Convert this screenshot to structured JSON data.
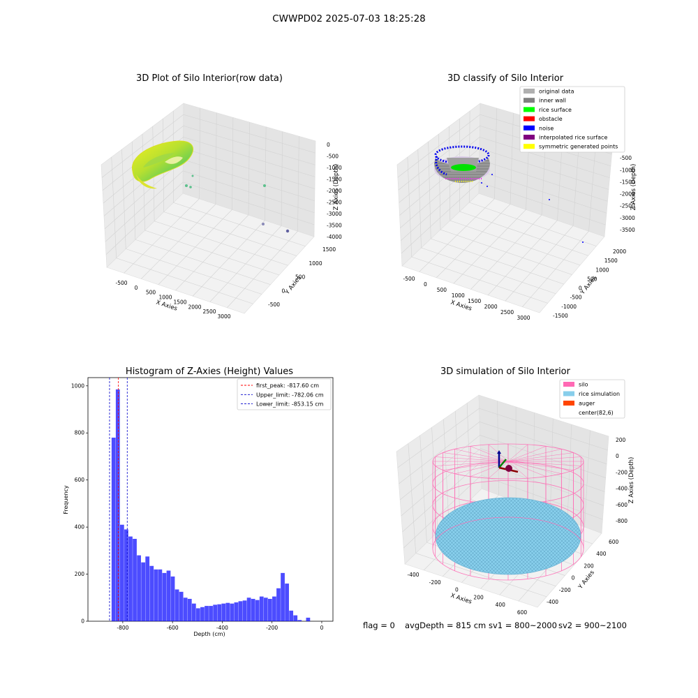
{
  "figure": {
    "suptitle": "CWWPD02 2025-07-03 18:25:28"
  },
  "panels": {
    "raw": {
      "title": "3D Plot of Silo Interior(row data)",
      "xlabel": "X Axies",
      "ylabel": "Y Axies",
      "zlabel": "Z Axies (Depth)",
      "xticks": [
        "-500",
        "0",
        "500",
        "1000",
        "1500",
        "2000",
        "2500",
        "3000"
      ],
      "yticks": [
        "-500",
        "0",
        "500",
        "1000",
        "1500"
      ],
      "zticks": [
        "0",
        "-500",
        "-1000",
        "-1500",
        "-2000",
        "-2500",
        "-3000",
        "-3500",
        "-4000"
      ]
    },
    "classify": {
      "title": "3D classify of Silo Interior",
      "xlabel": "X Axies",
      "ylabel": "Y Axies",
      "zlabel": "Z Axies (Depth)",
      "xticks": [
        "-500",
        "0",
        "500",
        "1000",
        "1500",
        "2000",
        "2500",
        "3000"
      ],
      "yticks": [
        "-1500",
        "-1000",
        "-500",
        "0",
        "500",
        "1000",
        "1500",
        "2000"
      ],
      "zticks": [
        "0",
        "-500",
        "-1000",
        "-1500",
        "-2000",
        "-2500",
        "-3000",
        "-3500"
      ],
      "legend": [
        {
          "label": "original data",
          "color": "#b0b0b0"
        },
        {
          "label": "inner wall",
          "color": "#808080"
        },
        {
          "label": "rice surface",
          "color": "#00ff00"
        },
        {
          "label": "obstacle",
          "color": "#ff0000"
        },
        {
          "label": "noise",
          "color": "#0000ff"
        },
        {
          "label": "interpolated rice surface",
          "color": "#800080"
        },
        {
          "label": "symmetric generated points",
          "color": "#ffff00"
        }
      ]
    },
    "simulation": {
      "title": "3D simulation of Silo Interior",
      "xlabel": "X Axies",
      "ylabel": "Y Axies",
      "zlabel": "Z Axies (Depth)",
      "xticks": [
        "-400",
        "-200",
        "0",
        "200",
        "400",
        "600"
      ],
      "yticks": [
        "-400",
        "-200",
        "0",
        "200",
        "400",
        "600"
      ],
      "zticks": [
        "200",
        "0",
        "-200",
        "-400",
        "-600",
        "-800"
      ],
      "legend": [
        {
          "label": "silo",
          "color": "#ff69b4"
        },
        {
          "label": "rice simulation",
          "color": "#87ceeb"
        },
        {
          "label": "auger",
          "color": "#ff4500"
        },
        {
          "label": "center(82,6)",
          "color": ""
        }
      ]
    }
  },
  "chart_data": [
    {
      "type": "scatter",
      "title": "3D Plot of Silo Interior(row data)",
      "xlabel": "X Axies",
      "ylabel": "Y Axies",
      "zlabel": "Z Axies (Depth)",
      "xlim": [
        -750,
        3250
      ],
      "ylim": [
        -900,
        1700
      ],
      "zlim": [
        -4100,
        200
      ],
      "grid": true,
      "series": [
        {
          "points": [
            [
              1700,
              1100,
              -1850
            ],
            [
              2300,
              100,
              -3550
            ],
            [
              2850,
              -400,
              -3700
            ],
            [
              300,
              200,
              -1700
            ],
            [
              250,
              300,
              -1800
            ]
          ]
        }
      ]
    },
    {
      "type": "scatter",
      "title": "3D classify of Silo Interior",
      "xlabel": "X Axies",
      "ylabel": "Y Axies",
      "zlabel": "Z Axies (Depth)",
      "grid": true,
      "legend_position": "top-right"
    },
    {
      "type": "bar",
      "title": "Histogram of Z-Axies (Height) Values",
      "xlabel": "Depth (cm)",
      "ylabel": "Frequency",
      "xlim": [
        -940,
        45
      ],
      "ylim": [
        0,
        1035
      ],
      "xticks": [
        -800,
        -600,
        -400,
        -200,
        0
      ],
      "yticks": [
        0,
        200,
        400,
        600,
        800,
        1000
      ],
      "bin_start": -845,
      "bin_width": 17,
      "values": [
        780,
        985,
        410,
        390,
        360,
        350,
        280,
        250,
        275,
        235,
        220,
        220,
        205,
        215,
        190,
        135,
        125,
        100,
        95,
        75,
        55,
        60,
        65,
        65,
        70,
        72,
        75,
        78,
        75,
        80,
        85,
        88,
        100,
        95,
        90,
        105,
        100,
        95,
        105,
        140,
        205,
        160,
        45,
        25,
        5,
        0,
        15
      ],
      "bar_color": "#0000ff",
      "legend_position": "top-right",
      "lines": [
        {
          "label": "first_peak: -817.60 cm",
          "value": -817.6,
          "color": "#ff0000"
        },
        {
          "label": "Upper_limit: -782.06 cm",
          "value": -782.06,
          "color": "#0000cc"
        },
        {
          "label": "Lower_limit: -853.15 cm",
          "value": -853.15,
          "color": "#0000cc"
        }
      ]
    },
    {
      "type": "scatter",
      "title": "3D simulation of Silo Interior",
      "xlabel": "X Axies",
      "ylabel": "Y Axies",
      "zlabel": "Z Axies (Depth)",
      "grid": true,
      "legend_position": "top-right"
    }
  ],
  "status": {
    "flag": "flag = 0",
    "avg": "avgDepth = 815 cm",
    "sv1": "sv1 = 800~2000",
    "sv2": "sv2 = 900~2100"
  }
}
